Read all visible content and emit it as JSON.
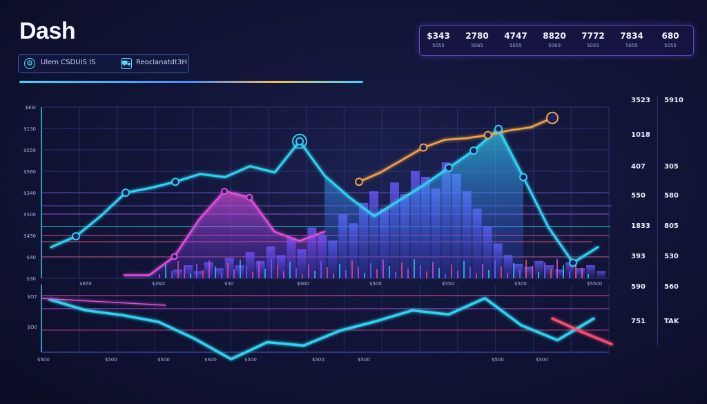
{
  "app": {
    "title": "Dash"
  },
  "controls": [
    {
      "label": "Ulem CSDUIS IS",
      "icon": "settings-icon"
    },
    {
      "label": "Reoclanatdt3H",
      "icon": "truck-icon"
    }
  ],
  "stats": [
    {
      "value": "$343",
      "label": "5055"
    },
    {
      "value": "2780",
      "label": "5065"
    },
    {
      "value": "4747",
      "label": "5055"
    },
    {
      "value": "8820",
      "label": "5060"
    },
    {
      "value": "7772",
      "label": "5055"
    },
    {
      "value": "7834",
      "label": "5055"
    },
    {
      "value": "680",
      "label": "5055"
    }
  ],
  "right_panel": [
    {
      "a": "3523",
      "b": "5910"
    },
    {
      "a": "1018",
      "b": ""
    },
    {
      "a": "407",
      "b": "305"
    },
    {
      "a": "550",
      "b": "580"
    },
    {
      "a": "1833",
      "b": "805"
    },
    {
      "a": "393",
      "b": "530"
    },
    {
      "a": "590",
      "b": "560"
    },
    {
      "a": "751",
      "b": "TAK"
    }
  ],
  "colors": {
    "cyan": "#2fd3f0",
    "orange": "#f4a640",
    "pink": "#e04fd8",
    "purple": "#7b5cff",
    "red": "#ff4b6e",
    "blue": "#3f7cff"
  },
  "chart_data": [
    {
      "type": "line",
      "y_tick_labels": [
        "$ESI",
        "$130",
        "$550",
        "$560",
        "$340",
        "$500",
        "$450",
        "$40",
        "$30"
      ],
      "x_tick_labels": [
        "$650",
        "$3SO",
        "$30",
        "$S00",
        "$500",
        "$550",
        "$500",
        "$5500"
      ],
      "series": [
        {
          "color": "#2fd3f0",
          "values": [
            20,
            27,
            40,
            55,
            58,
            62,
            67,
            65,
            72,
            68,
            88,
            66,
            52,
            40,
            50,
            60,
            71,
            82,
            96,
            65,
            33,
            10,
            20
          ]
        },
        {
          "color": "#f4a640",
          "values": [
            62,
            68,
            76,
            84,
            89,
            90,
            92,
            95,
            97,
            103
          ]
        },
        {
          "color": "#e04fd8",
          "values": [
            2,
            2,
            14,
            38,
            56,
            52,
            30,
            24,
            30
          ]
        }
      ],
      "bars": [
        6,
        9,
        5,
        11,
        7,
        14,
        9,
        18,
        12,
        22,
        16,
        28,
        20,
        35,
        30,
        26,
        44,
        38,
        52,
        60,
        48,
        66,
        58,
        74,
        70,
        62,
        80,
        72,
        60,
        48,
        36,
        24,
        16,
        10,
        8,
        12,
        9,
        6,
        11,
        7,
        9,
        5
      ],
      "grid": true
    },
    {
      "type": "line",
      "y_tick_labels": [
        "$O7",
        "$O0"
      ],
      "x_tick_labels": [
        "$500",
        "$500",
        "$500",
        "$S00",
        "$500",
        "$500",
        "$500",
        "$500",
        "$500"
      ],
      "series": [
        {
          "color": "#2fd3f0",
          "values": [
            88,
            72,
            65,
            55,
            30,
            0,
            25,
            20,
            42,
            56,
            72,
            66,
            90,
            50,
            28,
            60
          ]
        },
        {
          "color": "#ff4b6e",
          "values": [
            60,
            40,
            22
          ]
        }
      ],
      "grid": true
    }
  ]
}
